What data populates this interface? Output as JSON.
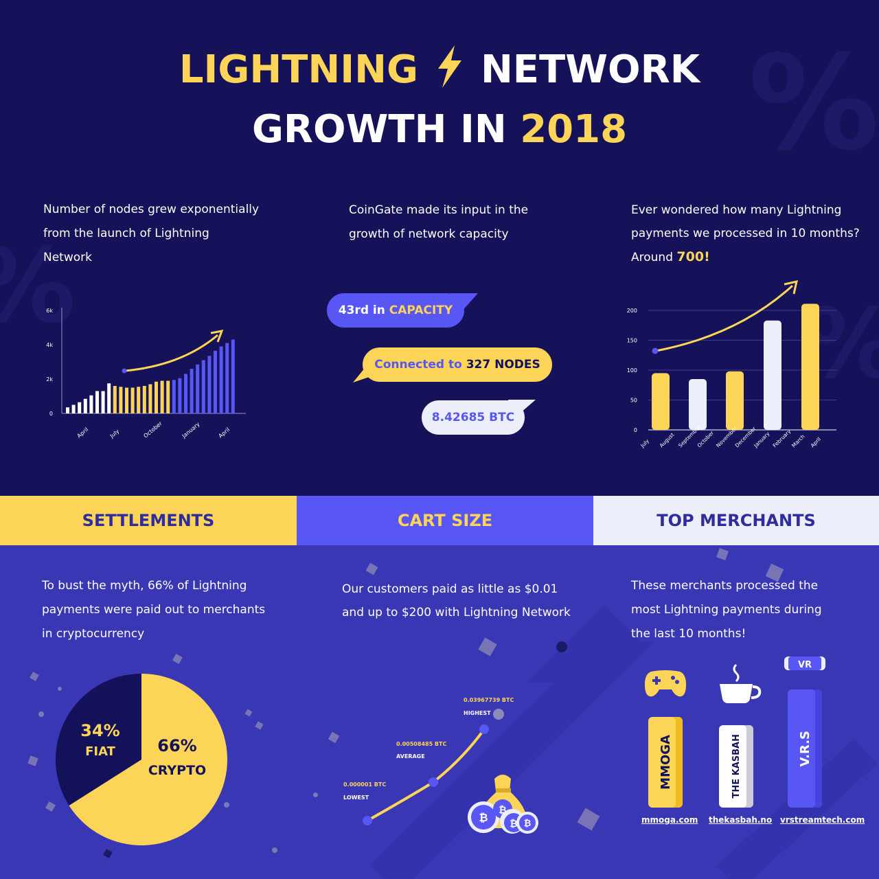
{
  "header": {
    "title_part1": "LIGHTNING",
    "title_part2": "NETWORK",
    "subtitle_part1": "GROWTH IN",
    "subtitle_year": "2018"
  },
  "nodes_panel": {
    "caption_line1": "Number of nodes grew exponentially",
    "caption_line2": "from the launch of Lightning",
    "caption_line3": "Network"
  },
  "capacity_panel": {
    "caption_line1": "CoinGate made its input in the",
    "caption_line2": "growth of network capacity",
    "bubble1_prefix": "43rd in",
    "bubble1_highlight": "CAPACITY",
    "bubble2_prefix": "Connected to",
    "bubble2_highlight": "327 NODES",
    "bubble3": "8.42685 BTC"
  },
  "payments_panel": {
    "caption_line1": "Ever wondered how many Lightning",
    "caption_line2": "payments we processed in 10 months?",
    "caption_line3_prefix": "Around",
    "caption_line3_highlight": "700!"
  },
  "chart_data": [
    {
      "type": "bar",
      "ylim": [
        0,
        6000
      ],
      "y_tick_labels": [
        "0",
        "2k",
        "4k",
        "6k"
      ],
      "x_tick_labels": [
        "April",
        "July",
        "October",
        "January",
        "April"
      ],
      "values": [
        350,
        500,
        650,
        850,
        1050,
        1300,
        1300,
        1750,
        1600,
        1550,
        1500,
        1500,
        1550,
        1600,
        1700,
        1850,
        1900,
        1900,
        1950,
        2050,
        2300,
        2600,
        2850,
        3100,
        3350,
        3650,
        3900,
        4100,
        4300
      ],
      "colors": [
        "#ffffff",
        "#ffffff",
        "#ffffff",
        "#ffffff",
        "#ffffff",
        "#ffffff",
        "#ffffff",
        "#ffffff",
        "#fcd457",
        "#fcd457",
        "#fcd457",
        "#fcd457",
        "#fcd457",
        "#fcd457",
        "#fcd457",
        "#fcd457",
        "#fcd457",
        "#fcd457",
        "#5856f4",
        "#5856f4",
        "#5856f4",
        "#5856f4",
        "#5856f4",
        "#5856f4",
        "#5856f4",
        "#5856f4",
        "#5856f4",
        "#5856f4",
        "#5856f4"
      ]
    },
    {
      "type": "bar",
      "ylim": [
        0,
        200
      ],
      "y_tick_labels": [
        "0",
        "50",
        "100",
        "150",
        "200"
      ],
      "categories": [
        "July",
        "August",
        "September",
        "October",
        "November",
        "December",
        "January",
        "February",
        "March",
        "April"
      ],
      "bars": [
        {
          "value": 95,
          "color": "#fcd457"
        },
        {
          "value": 85,
          "color": "#eceefa"
        },
        {
          "value": 98,
          "color": "#fcd457"
        },
        {
          "value": 183,
          "color": "#eceefa"
        },
        {
          "value": 211,
          "color": "#fcd457"
        }
      ]
    },
    {
      "type": "pie",
      "slices": [
        {
          "label": "CRYPTO",
          "percent": "66%",
          "value": 66,
          "color": "#fcd457"
        },
        {
          "label": "FIAT",
          "percent": "34%",
          "value": 34,
          "color": "#13115a"
        }
      ]
    },
    {
      "type": "line",
      "points": [
        {
          "label": "LOWEST",
          "value": "0.000001 BTC"
        },
        {
          "label": "AVERAGE",
          "value": "0.00508485 BTC"
        },
        {
          "label": "HIGHEST",
          "value": "0.03967739 BTC"
        }
      ]
    }
  ],
  "bands": {
    "settlements": "SETTLEMENTS",
    "cart_size": "CART SIZE",
    "top_merchants": "TOP MERCHANTS"
  },
  "settlements_panel": {
    "caption_line1": "To bust the myth, 66% of Lightning",
    "caption_line2": "payments were paid out to merchants",
    "caption_line3": "in cryptocurrency"
  },
  "cart_panel": {
    "caption_line1": "Our customers paid as little as $0.01",
    "caption_line2": "and up to $200 with Lightning Network"
  },
  "merchants_panel": {
    "caption_line1": "These merchants processed the",
    "caption_line2": "most Lightning payments during",
    "caption_line3": "the last 10 months!",
    "merchants": [
      {
        "name": "MMOGA",
        "link": "mmoga.com",
        "icon": "gamepad-icon"
      },
      {
        "name": "THE KASBAH",
        "link": "thekasbah.no",
        "icon": "coffee-cup-icon"
      },
      {
        "name": "V.R.S",
        "link": "vrstreamtech.com",
        "icon": "vr-headset-icon",
        "icon_text": "VR"
      }
    ]
  }
}
